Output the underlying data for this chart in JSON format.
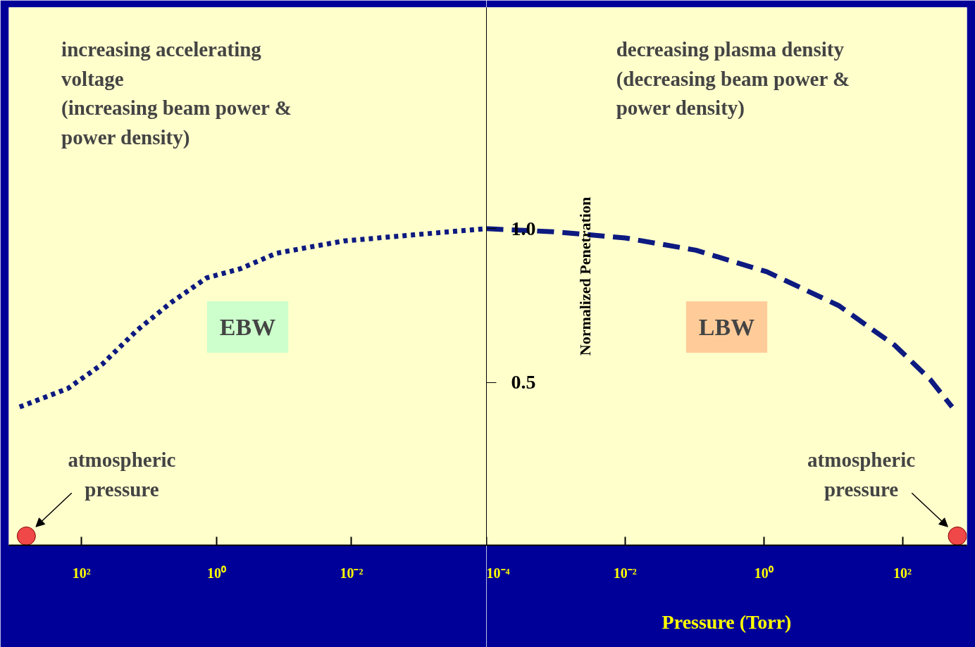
{
  "chart_data": [
    {
      "type": "line",
      "log": "x",
      "xlim": [
        1200,
        0.0001
      ],
      "ylim": [
        -0.03,
        1.72
      ],
      "xticks": [
        {
          "value": 100,
          "label": "10²"
        },
        {
          "value": 1,
          "label": "10⁰"
        },
        {
          "value": 0.01,
          "label": "10⁻²"
        }
      ],
      "tick_labels": "x",
      "grid": false,
      "series": [
        {
          "name": "EBW",
          "color": "#0d1a80",
          "line_style": "dotted",
          "x": [
            830,
            160,
            49,
            15,
            4.7,
            1.4,
            0.44,
            0.13,
            0.042,
            0.013,
            0.0012,
            0.0001
          ],
          "values": [
            0.42,
            0.48,
            0.56,
            0.67,
            0.76,
            0.84,
            0.87,
            0.92,
            0.94,
            0.96,
            0.98,
            1.0
          ]
        },
        {
          "type": "scatter",
          "color": "#f04848",
          "marker": "circle",
          "x": [
            660
          ],
          "values": [
            0
          ]
        }
      ],
      "annotations": [
        "increasing accelerating\nvoltage\n(increasing beam power &\npower density)",
        {
          "text": "atmospheric\npressure",
          "x": 660,
          "y": 0
        }
      ]
    },
    {
      "type": "line",
      "log": "x",
      "xlim": [
        0.0001,
        850
      ],
      "ylim": [
        -0.03,
        1.72
      ],
      "xticks": [
        {
          "value": 0.0001,
          "label": "10⁻⁴"
        },
        {
          "value": 0.01,
          "label": "10⁻²"
        },
        {
          "value": 1,
          "label": "10⁰"
        },
        {
          "value": 100,
          "label": "10²"
        }
      ],
      "yticks": [
        {
          "value": 0.5,
          "label": "0.5"
        },
        {
          "value": 1.0,
          "label": "1.0"
        }
      ],
      "xlabel": "Pressure (Torr)",
      "ylabel": "Normalized Penetration",
      "grid": false,
      "series": [
        {
          "name": "LBW",
          "color": "#0d1a80",
          "line_style": "dashed",
          "x": [
            0.0001,
            0.00093,
            0.01,
            0.105,
            1.1,
            12,
            78,
            250,
            520
          ],
          "values": [
            1.0,
            0.99,
            0.97,
            0.93,
            0.86,
            0.75,
            0.62,
            0.51,
            0.42
          ]
        },
        {
          "type": "scatter",
          "color": "#f04848",
          "marker": "circle",
          "x": [
            620
          ],
          "values": [
            0
          ]
        }
      ],
      "annotations": [
        "decreasing plasma density\n(decreasing beam power &\npower density)",
        {
          "text": "atmospheric\npressure",
          "x": 620,
          "y": 0
        }
      ]
    }
  ]
}
